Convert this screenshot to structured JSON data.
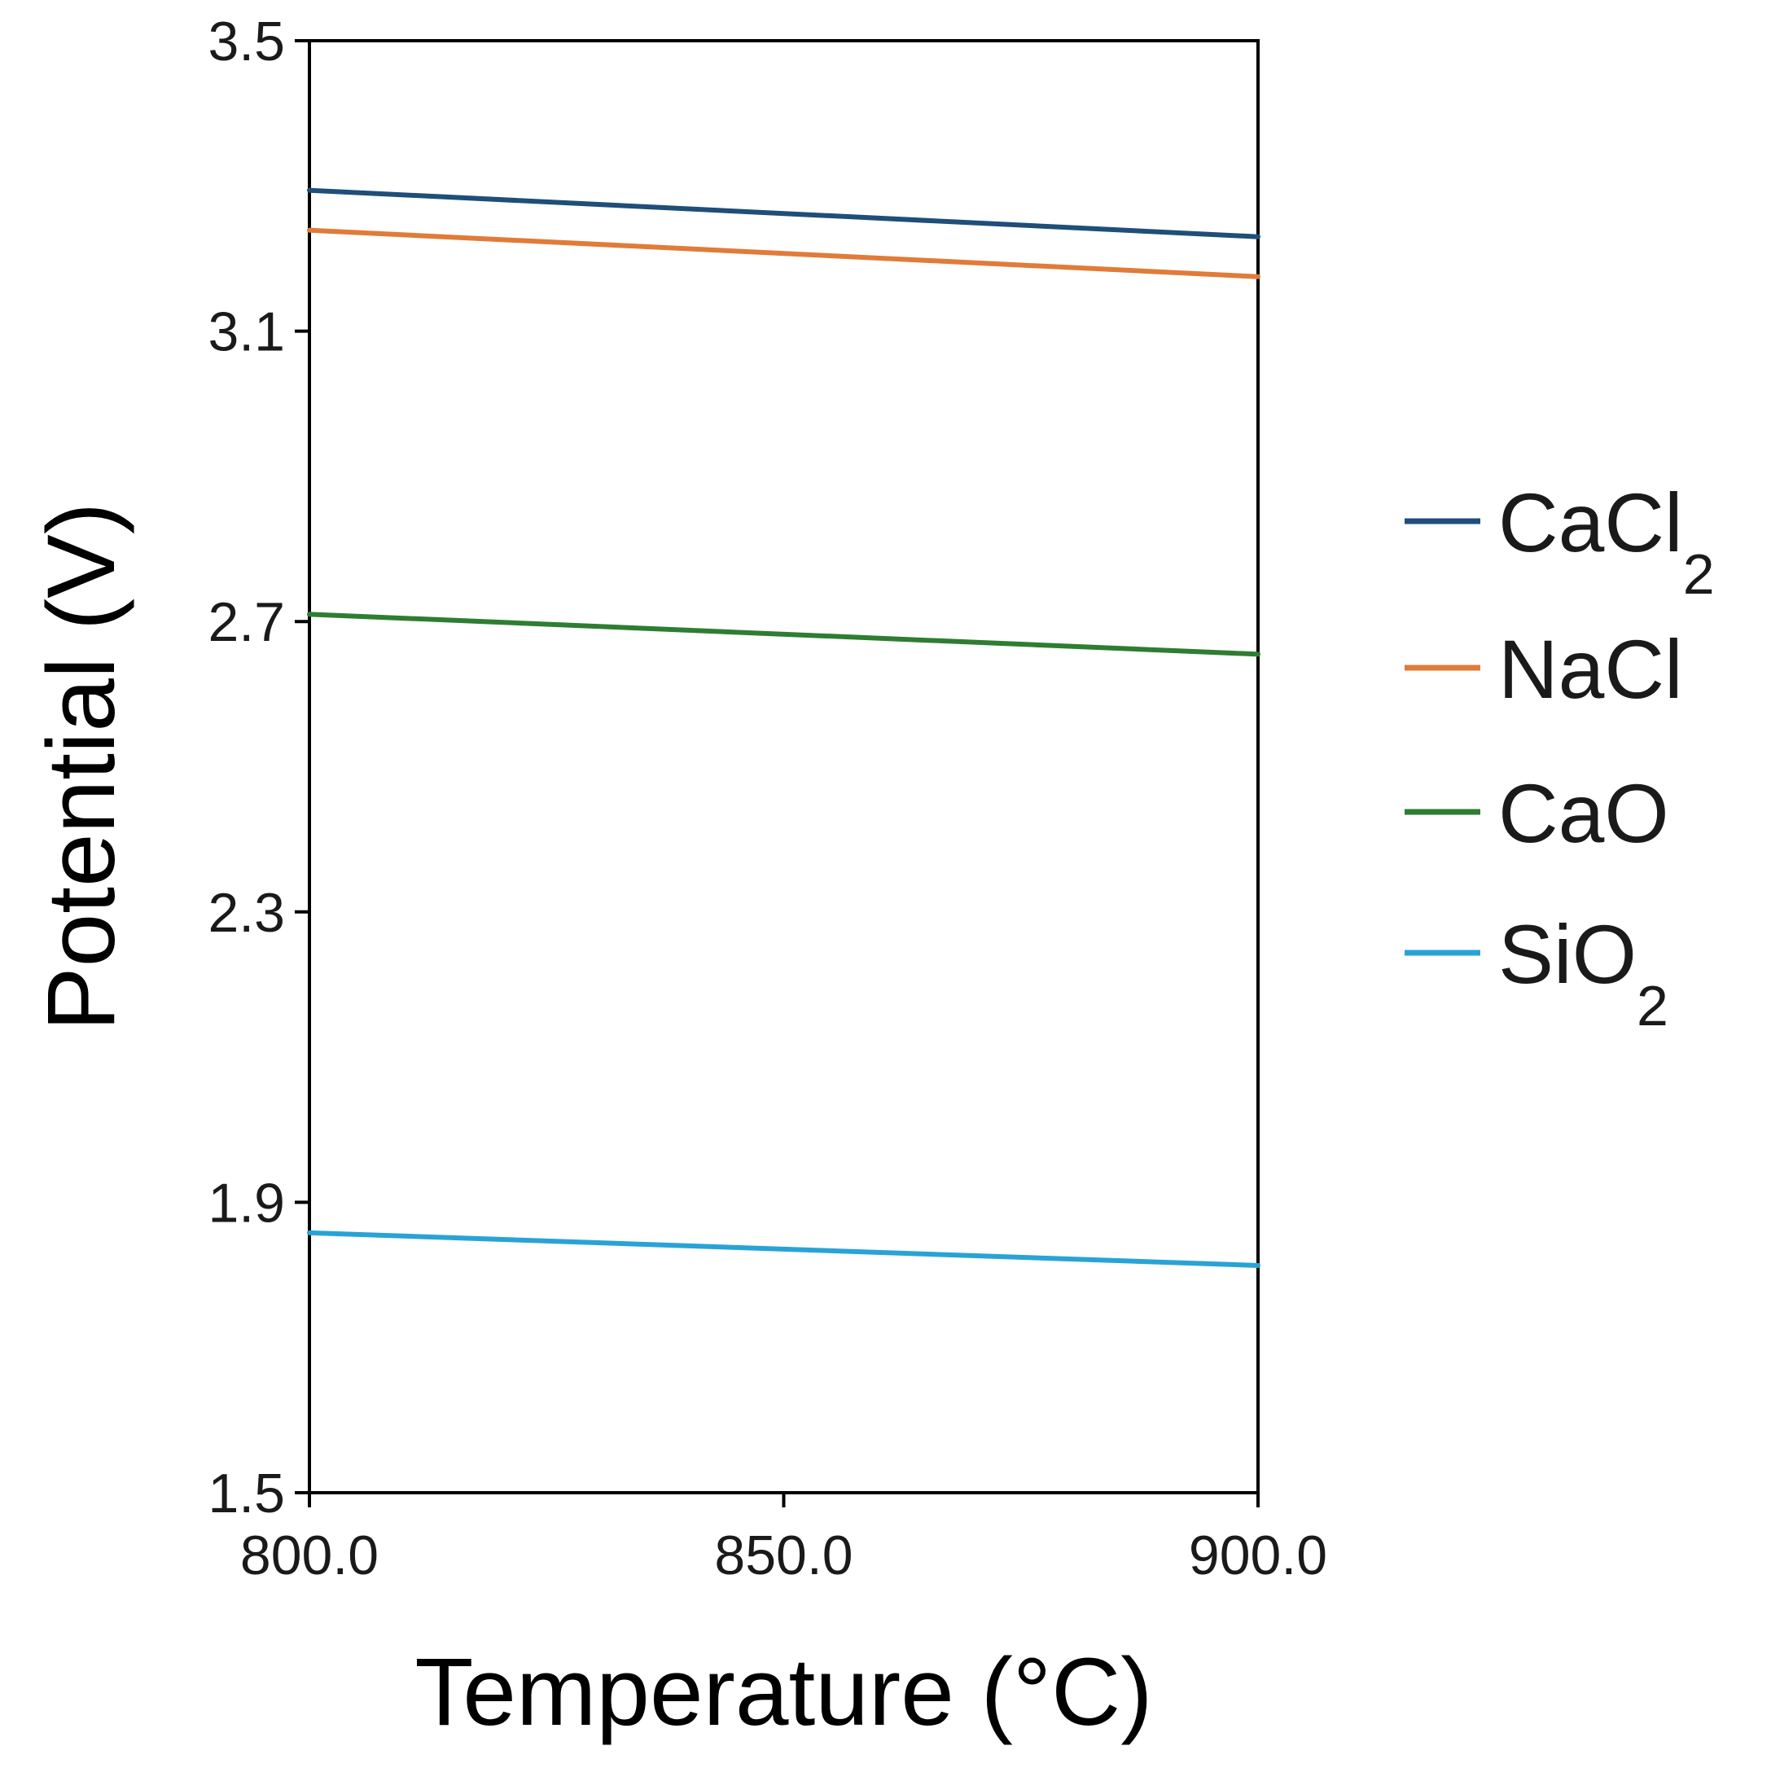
{
  "chart_data": {
    "type": "line",
    "title": "",
    "xlabel": "Temperature (°C)",
    "ylabel": "Potential (V)",
    "x": [
      800.0,
      900.0
    ],
    "xlim": [
      800.0,
      900.0
    ],
    "ylim": [
      1.5,
      3.5
    ],
    "xticks": [
      800.0,
      850.0,
      900.0
    ],
    "xtick_labels": [
      "800.0",
      "850.0",
      "900.0"
    ],
    "yticks": [
      1.5,
      1.9,
      2.3,
      2.7,
      3.1,
      3.5
    ],
    "ytick_labels": [
      "1.5",
      "1.9",
      "2.3",
      "2.7",
      "3.1",
      "3.5"
    ],
    "grid": false,
    "legend_position": "right",
    "series": [
      {
        "name": "CaCl",
        "subscript": "2",
        "color": "#1f4e79",
        "values": [
          3.294,
          3.23
        ]
      },
      {
        "name": "NaCl",
        "subscript": "",
        "color": "#e07b39",
        "values": [
          3.239,
          3.175
        ]
      },
      {
        "name": "CaO",
        "subscript": "",
        "color": "#2e7d32",
        "values": [
          2.71,
          2.655
        ]
      },
      {
        "name": "SiO",
        "subscript": "2",
        "color": "#29a3d6",
        "values": [
          1.858,
          1.813
        ]
      }
    ]
  }
}
